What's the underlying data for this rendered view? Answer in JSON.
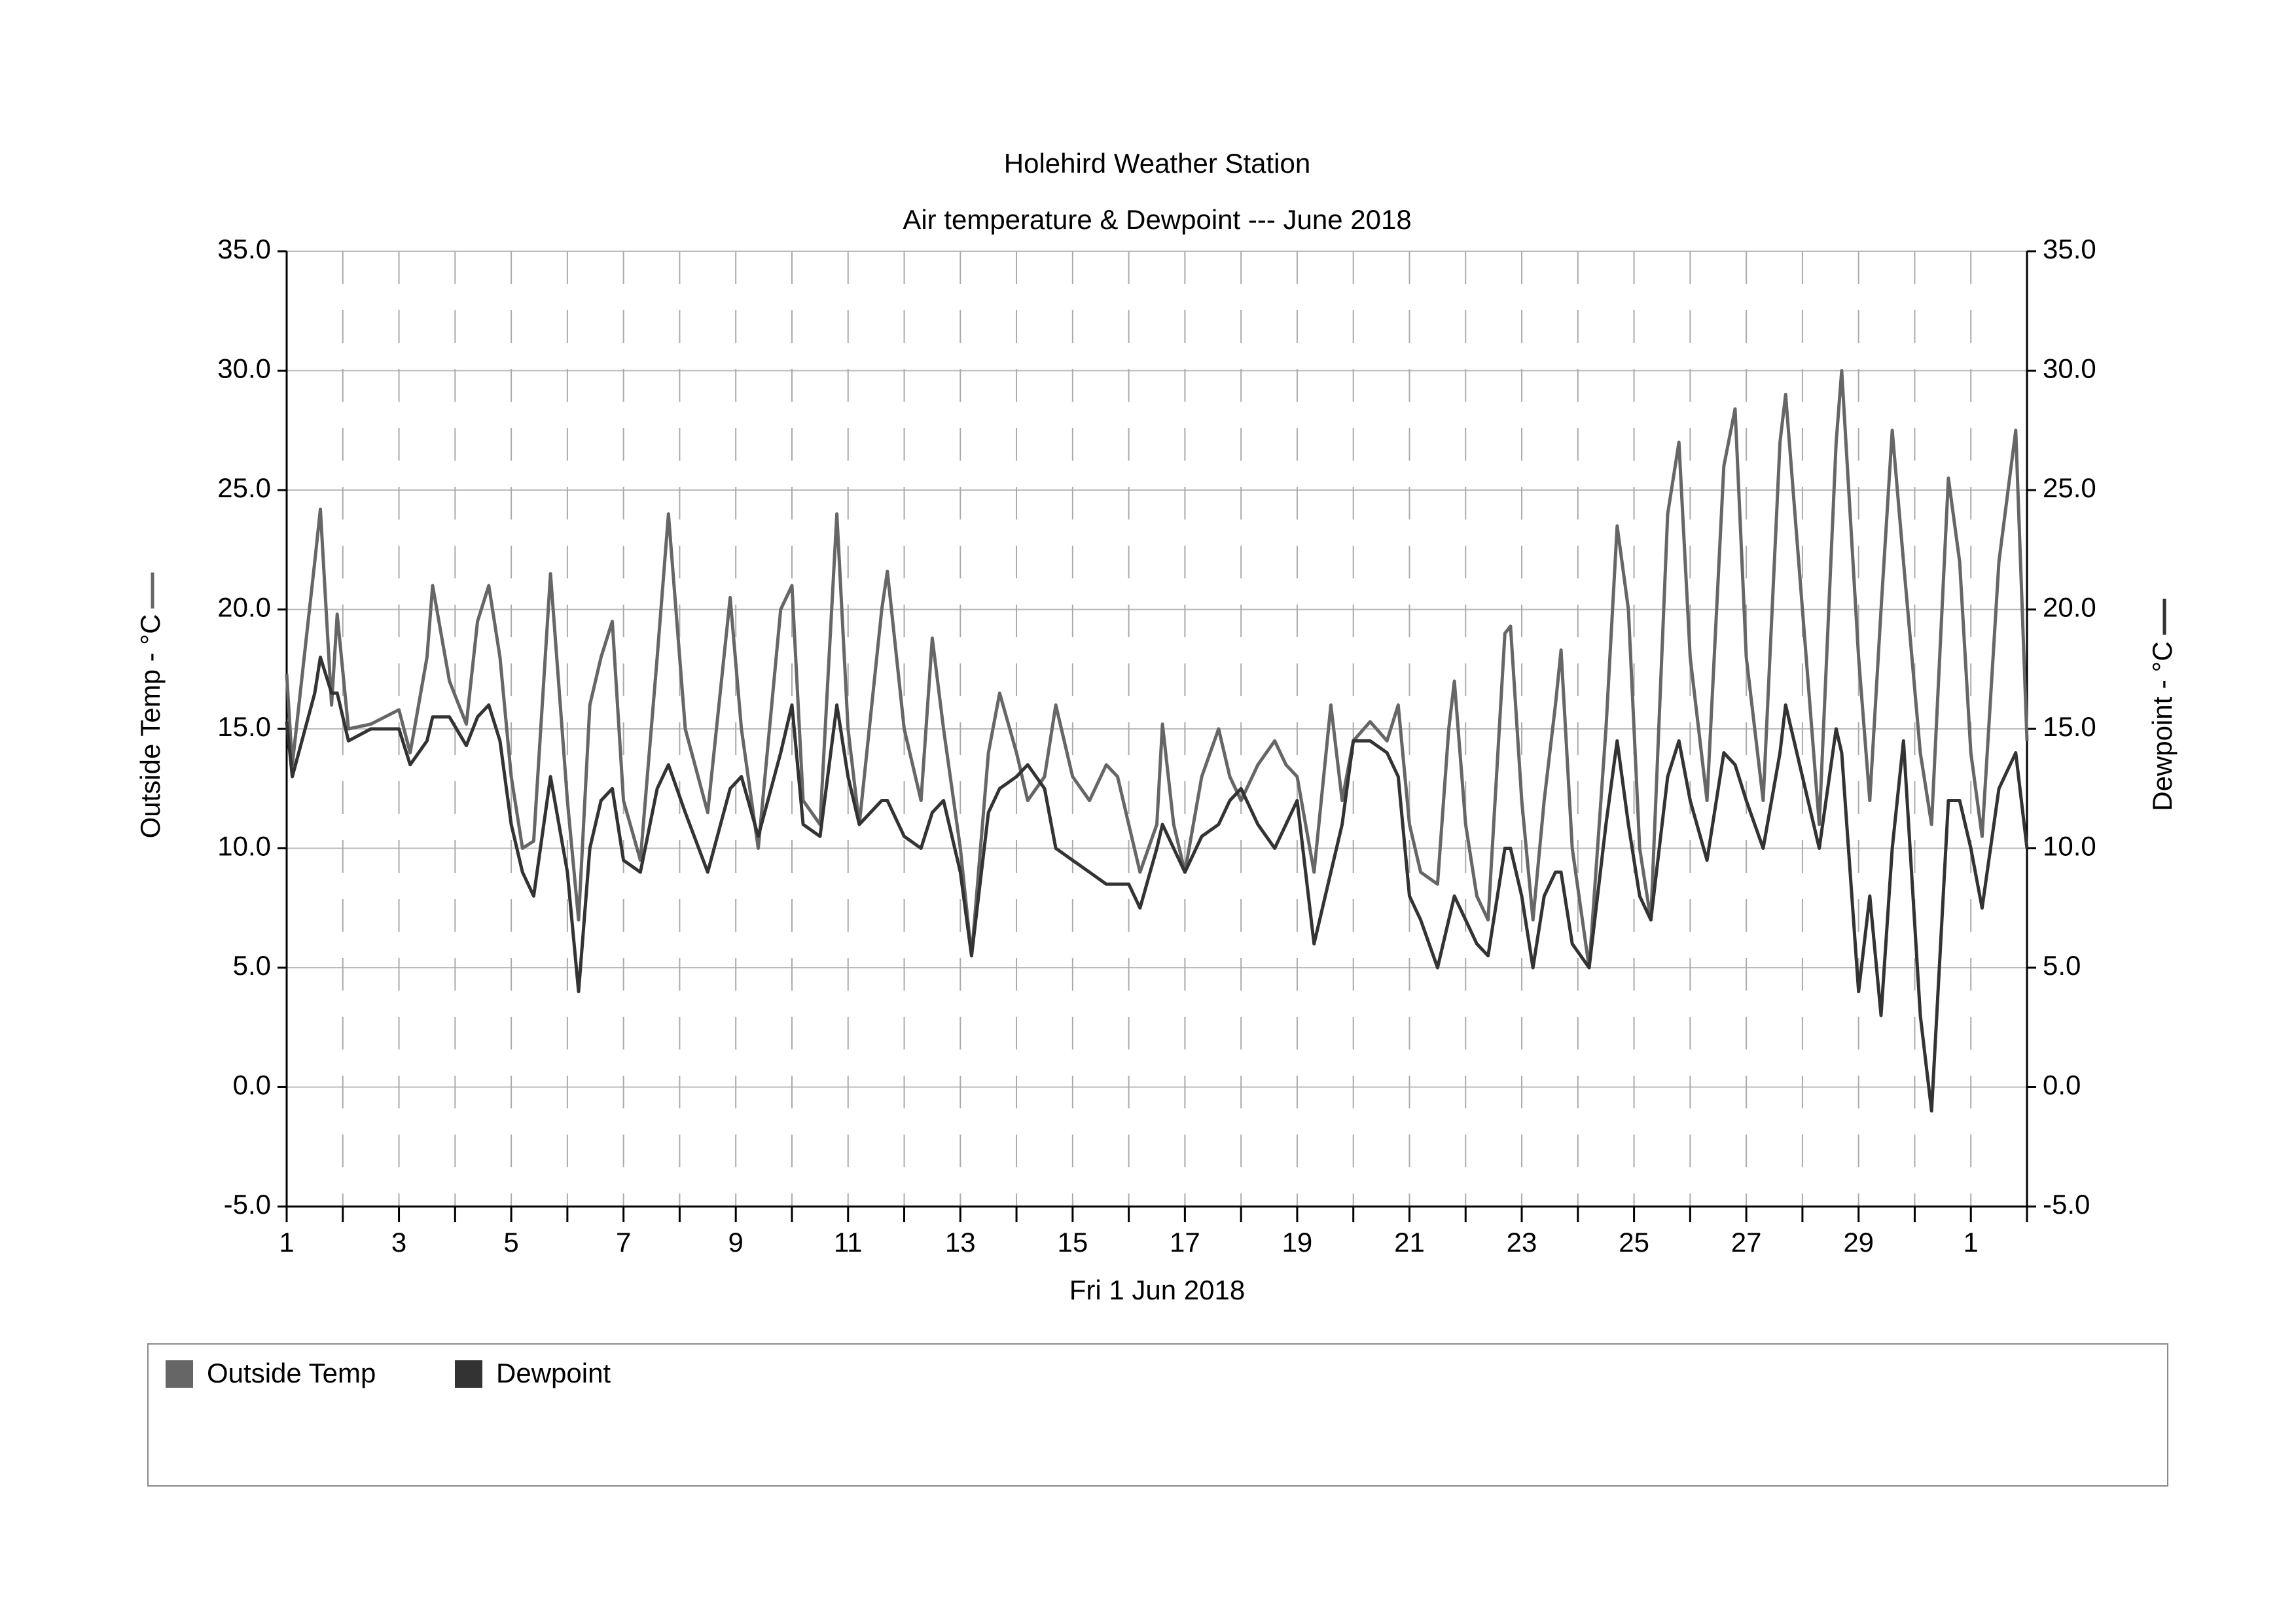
{
  "chart_data": {
    "type": "line",
    "title": "Holehird Weather Station",
    "subtitle": "Air temperature & Dewpoint --- June 2018",
    "xlabel": "Fri 1 Jun 2018",
    "ylabel": "Outside Temp - °C",
    "y2label": "Dewpoint - °C",
    "x": [
      1.0,
      1.1,
      1.5,
      1.6,
      1.8,
      1.9,
      2.1,
      2.5,
      3.0,
      3.2,
      3.5,
      3.6,
      3.9,
      4.2,
      4.4,
      4.6,
      4.8,
      5.0,
      5.2,
      5.4,
      5.7,
      6.0,
      6.2,
      6.4,
      6.6,
      6.8,
      7.0,
      7.3,
      7.6,
      7.8,
      8.1,
      8.5,
      8.9,
      9.1,
      9.4,
      9.8,
      10.0,
      10.2,
      10.5,
      10.8,
      11.0,
      11.2,
      11.6,
      11.7,
      12.0,
      12.3,
      12.5,
      12.7,
      13.0,
      13.2,
      13.5,
      13.7,
      14.0,
      14.2,
      14.5,
      14.7,
      15.0,
      15.3,
      15.6,
      15.8,
      16.0,
      16.2,
      16.5,
      16.6,
      16.8,
      17.0,
      17.3,
      17.6,
      17.8,
      18.0,
      18.3,
      18.6,
      18.8,
      19.0,
      19.3,
      19.6,
      19.8,
      20.0,
      20.3,
      20.6,
      20.8,
      21.0,
      21.2,
      21.5,
      21.7,
      21.8,
      22.0,
      22.2,
      22.4,
      22.7,
      22.8,
      23.0,
      23.2,
      23.4,
      23.6,
      23.7,
      23.9,
      24.2,
      24.5,
      24.7,
      24.9,
      25.1,
      25.3,
      25.6,
      25.8,
      26.0,
      26.3,
      26.6,
      26.8,
      27.0,
      27.3,
      27.6,
      27.7,
      28.0,
      28.3,
      28.6,
      28.7,
      29.0,
      29.2,
      29.4,
      29.6,
      29.8,
      30.1,
      30.3,
      30.6,
      30.8,
      31.0,
      31.2,
      31.5,
      31.8,
      32.0
    ],
    "series": [
      {
        "name": "Outside Temp",
        "color": "#666666",
        "axis": "y",
        "values": [
          17.3,
          13.5,
          22,
          24.2,
          16,
          19.8,
          15,
          15.2,
          15.8,
          14,
          18,
          21,
          17,
          15.2,
          19.5,
          21,
          18,
          13,
          10,
          10.3,
          21.5,
          12,
          7,
          16,
          18,
          19.5,
          12,
          9.5,
          18,
          24,
          15,
          11.5,
          20.5,
          15,
          10,
          20,
          21,
          12,
          11,
          24,
          15,
          11,
          20,
          21.6,
          15,
          12,
          18.8,
          15,
          10,
          5.5,
          14,
          16.5,
          14,
          12,
          13,
          16,
          13,
          12,
          13.5,
          13,
          11,
          9,
          11,
          15.2,
          11,
          9,
          13,
          15,
          13,
          12,
          13.5,
          14.5,
          13.5,
          13,
          9,
          16,
          12,
          14.5,
          15.3,
          14.5,
          16,
          11,
          9,
          8.5,
          15,
          17,
          11,
          8,
          7,
          19,
          19.3,
          12,
          7,
          12,
          16,
          18.3,
          10,
          5,
          15,
          23.5,
          20,
          10,
          7,
          24,
          27,
          18,
          12,
          26,
          28.4,
          18,
          12,
          27,
          29,
          20,
          11,
          27,
          30,
          18,
          12,
          20,
          27.5,
          22,
          14,
          11,
          25.5,
          22,
          14,
          10.5,
          22,
          27.5,
          14.5
        ]
      },
      {
        "name": "Dewpoint",
        "color": "#333333",
        "axis": "y2",
        "values": [
          15.3,
          13,
          16.5,
          18,
          16.5,
          16.5,
          14.5,
          15,
          15,
          13.5,
          14.5,
          15.5,
          15.5,
          14.3,
          15.5,
          16,
          14.5,
          11,
          9,
          8,
          13,
          9,
          4,
          10,
          12,
          12.5,
          9.5,
          9,
          12.5,
          13.5,
          11.5,
          9,
          12.5,
          13,
          10.5,
          14,
          16,
          11,
          10.5,
          16,
          13,
          11,
          12,
          12,
          10.5,
          10,
          11.5,
          12,
          9,
          5.5,
          11.5,
          12.5,
          13,
          13.5,
          12.5,
          10,
          9.5,
          9,
          8.5,
          8.5,
          8.5,
          7.5,
          10,
          11,
          10,
          9,
          10.5,
          11,
          12,
          12.5,
          11,
          10,
          11,
          12,
          6,
          9,
          11,
          14.5,
          14.5,
          14,
          13,
          8,
          7,
          5,
          7,
          8,
          7,
          6,
          5.5,
          10,
          10,
          8,
          5,
          8,
          9,
          9,
          6,
          5,
          11,
          14.5,
          11,
          8,
          7,
          13,
          14.5,
          12,
          9.5,
          14,
          13.5,
          12,
          10,
          14,
          16,
          13,
          10,
          15,
          14,
          4,
          8,
          3,
          10,
          14.5,
          3,
          -1,
          12,
          12,
          10,
          7.5,
          12.5,
          14,
          10
        ]
      }
    ],
    "xlim": [
      1,
      32
    ],
    "xticks": [
      1,
      3,
      5,
      7,
      9,
      11,
      13,
      15,
      17,
      19,
      21,
      23,
      25,
      27,
      29,
      {
        "value": 31,
        "label": "1"
      }
    ],
    "xminorticks": [
      2,
      4,
      6,
      8,
      10,
      12,
      14,
      16,
      18,
      20,
      22,
      24,
      26,
      28,
      30,
      32
    ],
    "ylim": [
      -5,
      35
    ],
    "yticks": [
      {
        "value": -5,
        "label": "-5.0"
      },
      {
        "value": 0,
        "label": "0.0"
      },
      {
        "value": 5,
        "label": "5.0"
      },
      {
        "value": 10,
        "label": "10.0"
      },
      {
        "value": 15,
        "label": "15.0"
      },
      {
        "value": 20,
        "label": "20.0"
      },
      {
        "value": 25,
        "label": "25.0"
      },
      {
        "value": 30,
        "label": "30.0"
      },
      {
        "value": 35,
        "label": "35.0"
      }
    ],
    "y2lim": [
      -5,
      35
    ],
    "y2ticks": [
      {
        "value": -5,
        "label": "-5.0"
      },
      {
        "value": 0,
        "label": "0.0"
      },
      {
        "value": 5,
        "label": "5.0"
      },
      {
        "value": 10,
        "label": "10.0"
      },
      {
        "value": 15,
        "label": "15.0"
      },
      {
        "value": 20,
        "label": "20.0"
      },
      {
        "value": 25,
        "label": "25.0"
      },
      {
        "value": 30,
        "label": "30.0"
      },
      {
        "value": 35,
        "label": "35.0"
      }
    ],
    "grid": true,
    "legend": "bottom"
  }
}
